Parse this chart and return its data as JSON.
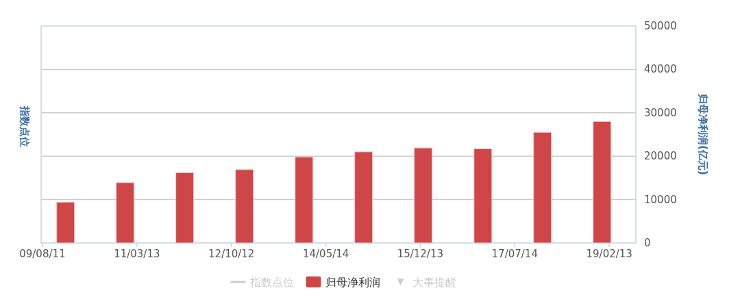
{
  "chart_data": {
    "type": "bar",
    "ylabel": "指数点位",
    "y2label": "归母净利润(亿元)",
    "x": [
      "2009-12-31",
      "2010-12-31",
      "2011-12-31",
      "2012-12-31",
      "2013-12-31",
      "2014-12-31",
      "2015-12-31",
      "2016-12-31",
      "2017-12-31",
      "2018-12-31"
    ],
    "xlim": [
      "2009-08-03",
      "2019-07-26"
    ],
    "xticks": [
      {
        "value": "2009-08-11",
        "label": "09/08/11"
      },
      {
        "value": "2011-03-13",
        "label": "11/03/13"
      },
      {
        "value": "2012-10-12",
        "label": "12/10/12"
      },
      {
        "value": "2014-05-14",
        "label": "14/05/14"
      },
      {
        "value": "2015-12-13",
        "label": "15/12/13"
      },
      {
        "value": "2017-07-14",
        "label": "17/07/14"
      },
      {
        "value": "2019-02-13",
        "label": "19/02/13"
      }
    ],
    "y2lim": [
      0,
      50000
    ],
    "y2ticks": [
      0,
      10000,
      20000,
      30000,
      40000,
      50000
    ],
    "grid": "y",
    "legend": "bottom",
    "series": [
      {
        "name": "指数点位",
        "type": "line",
        "color": "#cccccc",
        "values": [
          null,
          null,
          null,
          null,
          null,
          null,
          null,
          null,
          null,
          null
        ]
      },
      {
        "name": "归母净利润",
        "axis": "y2",
        "color": "#cf4649",
        "values": [
          9400,
          13900,
          16200,
          16900,
          19800,
          21000,
          21900,
          21700,
          25500,
          28000
        ]
      },
      {
        "name": "大事提醒",
        "type": "scatter",
        "marker": "triangle",
        "color": "#cccccc",
        "values": [
          null,
          null,
          null,
          null,
          null,
          null,
          null,
          null,
          null,
          null
        ]
      }
    ]
  }
}
